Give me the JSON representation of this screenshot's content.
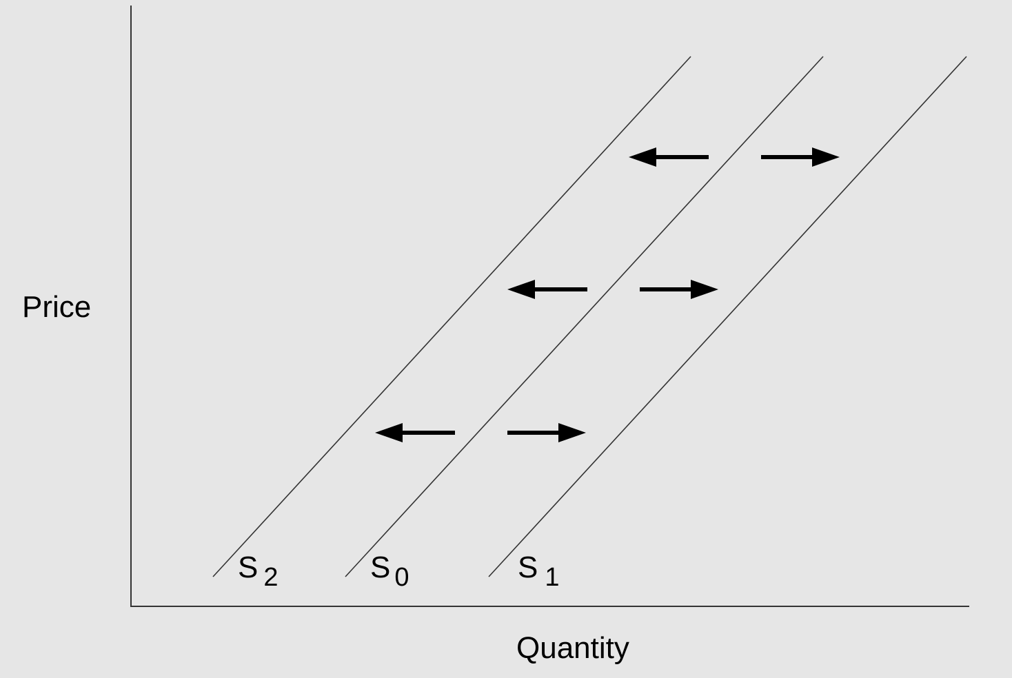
{
  "diagram": {
    "y_axis_label": "Price",
    "x_axis_label": "Quantity",
    "curves": [
      {
        "id": "s2",
        "letter": "S",
        "subscript": "2"
      },
      {
        "id": "s0",
        "letter": "S",
        "subscript": "0"
      },
      {
        "id": "s1",
        "letter": "S",
        "subscript": "1"
      }
    ],
    "arrows": [
      {
        "direction": "left"
      },
      {
        "direction": "right"
      },
      {
        "direction": "left"
      },
      {
        "direction": "right"
      },
      {
        "direction": "left"
      },
      {
        "direction": "right"
      }
    ],
    "colors": {
      "background": "#e6e6e6",
      "line": "#333333",
      "arrow": "#000000"
    }
  }
}
